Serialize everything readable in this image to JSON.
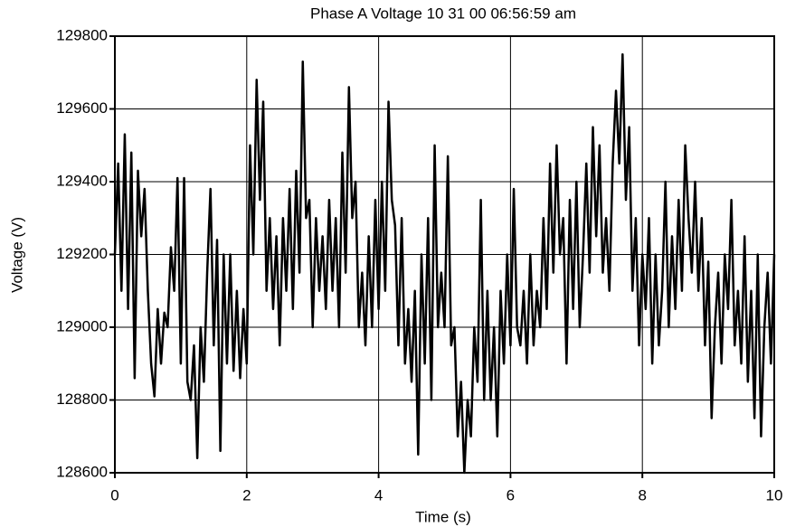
{
  "chart_data": {
    "type": "line",
    "title": "Phase A Voltage 10 31 00 06:56:59 am",
    "x_label": "Time (s)",
    "y_label": "Voltage (V)",
    "color": "#000000",
    "grid": true,
    "xlim": [
      0,
      10
    ],
    "ylim": [
      128600,
      129800
    ],
    "xticks": [
      0,
      2,
      4,
      6,
      8,
      10
    ],
    "yticks": [
      128600,
      128800,
      129000,
      129200,
      129400,
      129600,
      129800
    ],
    "x": [
      0,
      0.05,
      0.1,
      0.15,
      0.2,
      0.25,
      0.3,
      0.35,
      0.4,
      0.45,
      0.5,
      0.55,
      0.6,
      0.65,
      0.7,
      0.75,
      0.8,
      0.85,
      0.9,
      0.95,
      1,
      1.05,
      1.1,
      1.15,
      1.2,
      1.25,
      1.3,
      1.35,
      1.4,
      1.45,
      1.5,
      1.55,
      1.6,
      1.65,
      1.7,
      1.75,
      1.8,
      1.85,
      1.9,
      1.95,
      2,
      2.05,
      2.1,
      2.15,
      2.2,
      2.25,
      2.3,
      2.35,
      2.4,
      2.45,
      2.5,
      2.55,
      2.6,
      2.65,
      2.7,
      2.75,
      2.8,
      2.85,
      2.9,
      2.95,
      3,
      3.05,
      3.1,
      3.15,
      3.2,
      3.25,
      3.3,
      3.35,
      3.4,
      3.45,
      3.5,
      3.55,
      3.6,
      3.65,
      3.7,
      3.75,
      3.8,
      3.85,
      3.9,
      3.95,
      4,
      4.05,
      4.1,
      4.15,
      4.2,
      4.25,
      4.3,
      4.35,
      4.4,
      4.45,
      4.5,
      4.55,
      4.6,
      4.65,
      4.7,
      4.75,
      4.8,
      4.85,
      4.9,
      4.95,
      5,
      5.05,
      5.1,
      5.15,
      5.2,
      5.25,
      5.3,
      5.35,
      5.4,
      5.45,
      5.5,
      5.55,
      5.6,
      5.65,
      5.7,
      5.75,
      5.8,
      5.85,
      5.9,
      5.95,
      6,
      6.05,
      6.1,
      6.15,
      6.2,
      6.25,
      6.3,
      6.35,
      6.4,
      6.45,
      6.5,
      6.55,
      6.6,
      6.65,
      6.7,
      6.75,
      6.8,
      6.85,
      6.9,
      6.95,
      7,
      7.05,
      7.1,
      7.15,
      7.2,
      7.25,
      7.3,
      7.35,
      7.4,
      7.45,
      7.5,
      7.55,
      7.6,
      7.65,
      7.7,
      7.75,
      7.8,
      7.85,
      7.9,
      7.95,
      8,
      8.05,
      8.1,
      8.15,
      8.2,
      8.25,
      8.3,
      8.35,
      8.4,
      8.45,
      8.5,
      8.55,
      8.6,
      8.65,
      8.7,
      8.75,
      8.8,
      8.85,
      8.9,
      8.95,
      9,
      9.05,
      9.1,
      9.15,
      9.2,
      9.25,
      9.3,
      9.35,
      9.4,
      9.45,
      9.5,
      9.55,
      9.6,
      9.65,
      9.7,
      9.75,
      9.8,
      9.85,
      9.9,
      9.95,
      10
    ],
    "values": [
      129200,
      129450,
      129100,
      129530,
      129050,
      129480,
      128860,
      129430,
      129250,
      129380,
      129100,
      128900,
      128810,
      129050,
      128900,
      129040,
      129000,
      129220,
      129100,
      129410,
      128900,
      129410,
      128850,
      128800,
      128950,
      128640,
      129000,
      128850,
      129150,
      129380,
      128950,
      129240,
      128660,
      129200,
      128900,
      129200,
      128880,
      129100,
      128860,
      129050,
      128900,
      129500,
      129200,
      129680,
      129350,
      129620,
      129100,
      129300,
      129050,
      129250,
      128950,
      129300,
      129100,
      129380,
      129050,
      129430,
      129150,
      129730,
      129300,
      129350,
      129000,
      129300,
      129100,
      129250,
      129050,
      129350,
      129100,
      129300,
      129000,
      129480,
      129150,
      129660,
      129300,
      129400,
      129000,
      129150,
      128950,
      129250,
      129000,
      129350,
      129050,
      129400,
      129100,
      129620,
      129350,
      129280,
      128950,
      129300,
      128900,
      129050,
      128850,
      129100,
      128650,
      129200,
      128900,
      129300,
      128800,
      129500,
      129000,
      129150,
      129000,
      129470,
      128950,
      129000,
      128700,
      128850,
      128600,
      128800,
      128700,
      129000,
      128850,
      129350,
      128800,
      129100,
      128800,
      129000,
      128700,
      129100,
      128900,
      129200,
      128950,
      129380,
      129000,
      128950,
      129100,
      128900,
      129200,
      128950,
      129100,
      129000,
      129300,
      129050,
      129450,
      129150,
      129500,
      129200,
      129300,
      128900,
      129350,
      129050,
      129400,
      129000,
      129200,
      129450,
      129150,
      129550,
      129250,
      129500,
      129150,
      129300,
      129100,
      129450,
      129650,
      129450,
      129750,
      129350,
      129550,
      129100,
      129300,
      128950,
      129200,
      129050,
      129300,
      128900,
      129200,
      128950,
      129100,
      129400,
      129000,
      129250,
      129050,
      129350,
      129100,
      129500,
      129300,
      129150,
      129400,
      129100,
      129300,
      128950,
      129180,
      128750,
      129000,
      129150,
      128900,
      129200,
      129050,
      129350,
      128950,
      129100,
      128900,
      129250,
      128850,
      129100,
      128750,
      129200,
      128700,
      129000,
      129150,
      128900,
      129200
    ]
  }
}
